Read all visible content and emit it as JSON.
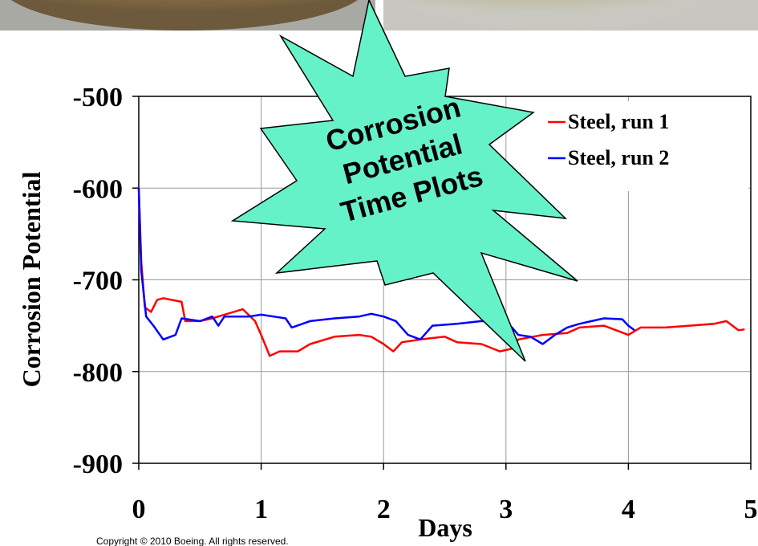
{
  "chart_data": {
    "type": "line",
    "xlabel": "Days",
    "ylabel": "Corrosion Potential",
    "annotation": [
      "Corrosion",
      "Potential",
      "Time Plots"
    ],
    "footer": "Copyright © 2010 Boeing. All rights reserved.",
    "xlim": [
      0,
      5
    ],
    "xticks": [
      0,
      1,
      2,
      3,
      4,
      5
    ],
    "ylim": [
      -900,
      -500
    ],
    "yticks": [
      -900,
      -800,
      -700,
      -600,
      -500
    ],
    "grid": true,
    "legend": "upper right",
    "series": [
      {
        "name": "Steel, run 1",
        "color": "#ff0000",
        "x": [
          0,
          0.02,
          0.05,
          0.1,
          0.15,
          0.2,
          0.35,
          0.38,
          0.5,
          0.6,
          0.7,
          0.85,
          0.95,
          1.0,
          1.07,
          1.15,
          1.3,
          1.4,
          1.6,
          1.8,
          1.9,
          2.0,
          2.08,
          2.15,
          2.3,
          2.5,
          2.6,
          2.8,
          2.95,
          3.05,
          3.1,
          3.3,
          3.5,
          3.6,
          3.8,
          3.9,
          4.0,
          4.1,
          4.3,
          4.5,
          4.7,
          4.8,
          4.9,
          4.95
        ],
        "values": [
          -600,
          -680,
          -730,
          -735,
          -722,
          -720,
          -724,
          -745,
          -745,
          -742,
          -738,
          -732,
          -745,
          -760,
          -783,
          -778,
          -778,
          -770,
          -762,
          -760,
          -762,
          -770,
          -778,
          -768,
          -765,
          -762,
          -768,
          -770,
          -778,
          -775,
          -765,
          -760,
          -758,
          -752,
          -750,
          -755,
          -760,
          -752,
          -752,
          -750,
          -748,
          -745,
          -755,
          -754
        ]
      },
      {
        "name": "Steel, run 2",
        "color": "#0000ff",
        "x": [
          0,
          0.02,
          0.06,
          0.12,
          0.2,
          0.3,
          0.35,
          0.5,
          0.6,
          0.65,
          0.7,
          0.9,
          1.0,
          1.1,
          1.2,
          1.25,
          1.4,
          1.6,
          1.8,
          1.9,
          2.0,
          2.1,
          2.2,
          2.3,
          2.4,
          2.6,
          2.8,
          2.95,
          3.05,
          3.1,
          3.2,
          3.3,
          3.4,
          3.5,
          3.6,
          3.7,
          3.8,
          3.95,
          4.0,
          4.05
        ],
        "values": [
          -600,
          -690,
          -740,
          -750,
          -765,
          -760,
          -742,
          -745,
          -740,
          -750,
          -740,
          -740,
          -738,
          -740,
          -742,
          -752,
          -745,
          -742,
          -740,
          -737,
          -740,
          -745,
          -760,
          -765,
          -750,
          -748,
          -745,
          -746,
          -752,
          -760,
          -762,
          -770,
          -760,
          -752,
          -748,
          -745,
          -742,
          -743,
          -750,
          -755
        ]
      }
    ]
  }
}
